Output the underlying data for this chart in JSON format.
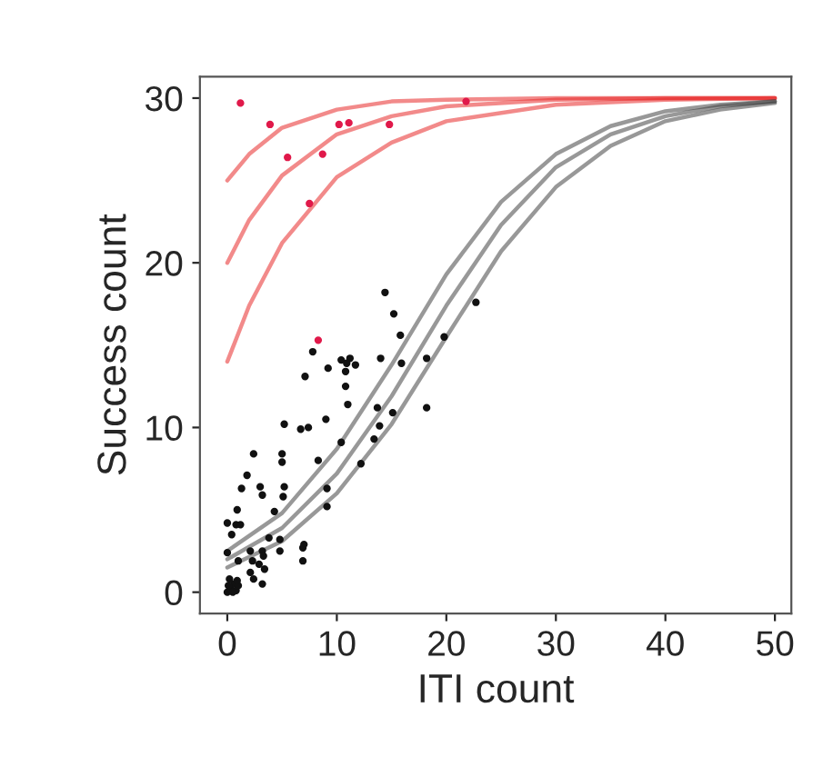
{
  "chart_data": {
    "type": "scatter",
    "xlabel": "ITI count",
    "ylabel": "Success count",
    "xlim": [
      -2.5,
      51.5
    ],
    "ylim": [
      -1.3,
      31.3
    ],
    "xticks": [
      0,
      10,
      20,
      30,
      40,
      50
    ],
    "yticks": [
      0,
      10,
      20,
      30
    ],
    "grid": false,
    "legend": false,
    "series": [
      {
        "type": "line",
        "color": "#e8292a",
        "x": [
          0,
          2,
          5,
          10,
          15,
          20,
          30,
          40,
          50
        ],
        "values": [
          25,
          26.6,
          28.2,
          29.3,
          29.8,
          29.9,
          30,
          30,
          30
        ]
      },
      {
        "type": "line",
        "color": "#e8292a",
        "x": [
          0,
          2,
          5,
          10,
          15,
          20,
          30,
          40,
          50
        ],
        "values": [
          20,
          22.6,
          25.3,
          27.8,
          28.9,
          29.5,
          29.9,
          30,
          30
        ]
      },
      {
        "type": "line",
        "color": "#e8292a",
        "x": [
          0,
          2,
          5,
          10,
          15,
          20,
          30,
          40,
          50
        ],
        "values": [
          14,
          17.4,
          21.2,
          25.2,
          27.3,
          28.6,
          29.6,
          29.9,
          30
        ]
      },
      {
        "type": "line",
        "color": "#444444",
        "x": [
          0,
          5,
          10,
          15,
          20,
          25,
          30,
          35,
          40,
          45,
          50
        ],
        "values": [
          2.0,
          3.9,
          7.2,
          11.9,
          17.4,
          22.3,
          25.8,
          27.8,
          28.9,
          29.5,
          29.8
        ]
      },
      {
        "type": "line",
        "color": "#444444",
        "x": [
          0,
          5,
          10,
          15,
          20,
          25,
          30,
          35,
          40,
          45,
          50
        ],
        "values": [
          2.5,
          4.8,
          8.7,
          13.8,
          19.3,
          23.7,
          26.6,
          28.3,
          29.2,
          29.6,
          29.8
        ]
      },
      {
        "type": "line",
        "color": "#444444",
        "x": [
          0,
          5,
          10,
          15,
          20,
          25,
          30,
          35,
          40,
          45,
          50
        ],
        "values": [
          1.5,
          3.1,
          6.0,
          10.2,
          15.5,
          20.7,
          24.6,
          27.1,
          28.6,
          29.3,
          29.7
        ]
      },
      {
        "marker": "circle",
        "color": "#e0194a",
        "x": [
          1.2,
          3.9,
          5.5,
          8.7,
          7.5,
          10.2,
          11.1,
          14.8,
          21.8,
          8.3
        ],
        "values": [
          29.7,
          28.4,
          26.4,
          26.6,
          23.6,
          28.4,
          28.5,
          28.4,
          29.8,
          15.3
        ]
      },
      {
        "marker": "circle",
        "color": "#111111",
        "x": [
          14.4,
          22.7,
          15.2,
          15.8,
          19.8,
          7.8,
          10.4,
          11.2,
          11.7,
          10.9,
          9.2,
          14.0,
          15.9,
          18.2,
          7.1,
          10.8,
          10.8,
          11.0,
          18.2,
          15.1,
          13.7,
          5.2,
          6.7,
          7.4,
          9.0,
          13.9,
          13.4,
          10.4,
          2.4,
          5.0,
          5.0,
          8.3,
          12.2,
          1.8,
          3.0,
          1.3,
          3.2,
          5.2,
          5.1,
          9.1,
          9.1,
          4.3,
          0.9,
          0.0,
          0.8,
          1.2,
          0.4,
          3.8,
          4.8,
          7.0,
          6.9,
          4.8,
          6.9,
          0.0,
          2.1,
          3.2,
          3.3,
          2.3,
          1.0,
          2.9,
          2.1,
          3.4,
          2.4,
          3.2,
          0.0,
          0.3,
          0.6,
          0.2,
          0.8,
          1.0,
          0.5,
          0.1,
          0.9
        ],
        "values": [
          18.2,
          17.6,
          16.9,
          15.6,
          15.5,
          14.6,
          14.1,
          14.2,
          13.8,
          13.9,
          13.6,
          14.2,
          13.9,
          14.2,
          13.1,
          13.4,
          12.5,
          11.4,
          11.2,
          10.9,
          11.2,
          10.2,
          9.9,
          10.0,
          10.5,
          10.1,
          9.3,
          9.1,
          8.4,
          8.4,
          7.9,
          8.0,
          7.8,
          7.1,
          6.4,
          6.3,
          5.9,
          6.4,
          5.8,
          6.3,
          5.2,
          4.9,
          5.0,
          4.2,
          4.1,
          4.1,
          3.5,
          3.3,
          3.2,
          2.9,
          2.7,
          2.5,
          1.9,
          2.4,
          2.5,
          2.5,
          2.2,
          1.9,
          1.9,
          1.7,
          1.2,
          1.4,
          0.8,
          0.5,
          0.0,
          0.2,
          0.5,
          0.8,
          0.1,
          0.4,
          0.0,
          0.4,
          0.7
        ]
      }
    ]
  }
}
